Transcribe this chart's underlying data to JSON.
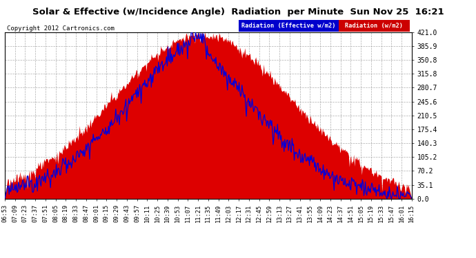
{
  "title": "Solar & Effective (w/Incidence Angle)  Radiation  per Minute  Sun Nov 25  16:21",
  "copyright": "Copyright 2012 Cartronics.com",
  "yticks": [
    0.0,
    35.1,
    70.2,
    105.2,
    140.3,
    175.4,
    210.5,
    245.6,
    280.7,
    315.8,
    350.8,
    385.9,
    421.0
  ],
  "ymax": 421.0,
  "legend1_label": "Radiation (Effective w/m2)",
  "legend2_label": "Radiation (w/m2)",
  "fill_color": "#dd0000",
  "line_color": "#0000dd",
  "bg_color": "#ffffff",
  "grid_color": "#999999",
  "xtick_labels": [
    "06:53",
    "07:09",
    "07:23",
    "07:37",
    "07:51",
    "08:05",
    "08:19",
    "08:33",
    "08:47",
    "09:01",
    "09:15",
    "09:29",
    "09:43",
    "09:57",
    "10:11",
    "10:25",
    "10:39",
    "10:53",
    "11:07",
    "11:21",
    "11:35",
    "11:49",
    "12:03",
    "12:17",
    "12:31",
    "12:45",
    "12:59",
    "13:13",
    "13:27",
    "13:41",
    "13:55",
    "14:09",
    "14:23",
    "14:37",
    "14:51",
    "15:05",
    "15:19",
    "15:33",
    "15:47",
    "16:01",
    "16:15"
  ]
}
